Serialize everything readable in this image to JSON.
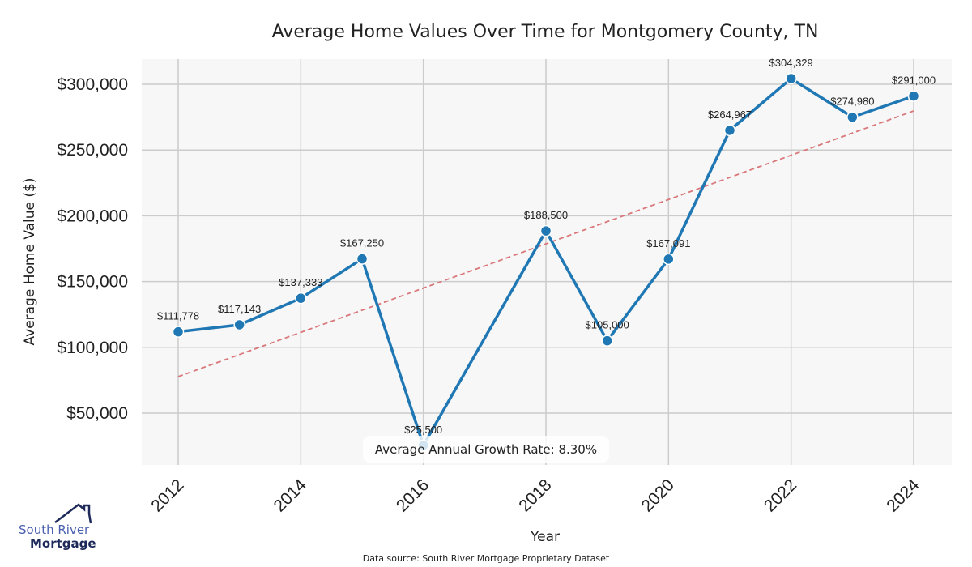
{
  "chart_data": {
    "type": "line",
    "title": "Average Home Values Over Time for Montgomery County, TN",
    "xlabel": "Year",
    "ylabel": "Average Home Value ($)",
    "x": [
      2012,
      2013,
      2014,
      2015,
      2016,
      2018,
      2019,
      2020,
      2021,
      2022,
      2023,
      2024
    ],
    "series": [
      {
        "name": "Average Home Value",
        "color": "#1f77b4",
        "values": [
          111778,
          117143,
          137333,
          167250,
          25500,
          188500,
          105000,
          167091,
          264967,
          304329,
          274980,
          291000
        ],
        "labels": [
          "$111,778",
          "$117,143",
          "$137,333",
          "$167,250",
          "$25,500",
          "$188,500",
          "$105,000",
          "$167,091",
          "$264,967",
          "$304,329",
          "$274,980",
          "$291,000"
        ]
      },
      {
        "name": "Trend",
        "color": "#d62728",
        "style": "dashed",
        "x": [
          2012,
          2024
        ],
        "values": [
          77700,
          279700
        ]
      }
    ],
    "xticks": [
      2012,
      2014,
      2016,
      2018,
      2020,
      2022,
      2024
    ],
    "xtick_labels": [
      "2012",
      "2014",
      "2016",
      "2018",
      "2020",
      "2022",
      "2024"
    ],
    "yticks": [
      50000,
      100000,
      150000,
      200000,
      250000,
      300000
    ],
    "ytick_labels": [
      "$50,000",
      "$100,000",
      "$150,000",
      "$200,000",
      "$250,000",
      "$300,000"
    ],
    "xlim": [
      2011.4,
      2024.6
    ],
    "ylim": [
      -1000,
      307000
    ],
    "grid": true,
    "annotation": "Average Annual Growth Rate: 8.30%"
  },
  "source": "Data source: South River Mortgage Proprietary Dataset",
  "logo": {
    "line1": "South River",
    "line2": "Mortgage"
  }
}
